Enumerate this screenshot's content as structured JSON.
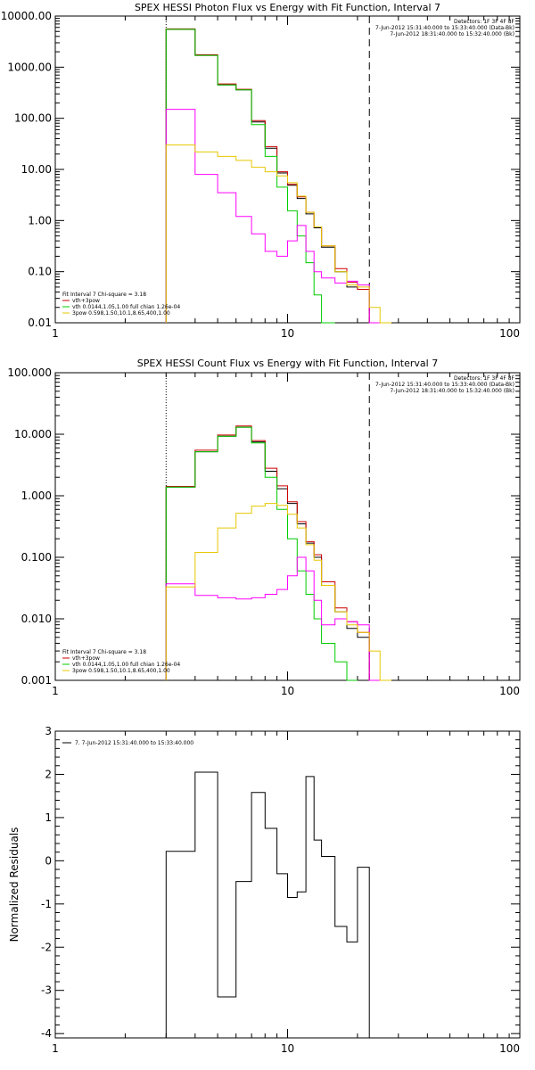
{
  "chart_data": [
    {
      "type": "line",
      "title": "SPEX HESSI Photon Flux vs Energy with Fit Function, Interval 7",
      "x_scale": "log",
      "y_scale": "log",
      "xlim": [
        1,
        100
      ],
      "ylim": [
        0.01,
        10000
      ],
      "x_ticks": [
        "1",
        "10",
        "100"
      ],
      "y_ticks": [
        "0.01",
        "0.10",
        "1.00",
        "10.00",
        "100.00",
        "1000.00",
        "10000.00"
      ],
      "grid": false,
      "vlines": [
        {
          "x": 3,
          "style": "dotted"
        },
        {
          "x": 22.5,
          "style": "dashed"
        }
      ],
      "header": [
        "Detectors: 1F 3F 4F 8F",
        "7-Jun-2012 15:31:40.000 to 15:33:40.000 (Data-Bk)",
        "7-Jun-2012 18:31:40.000 to 15:32:40.000 (Bk)"
      ],
      "header_colors": [
        "#000000",
        "#000000",
        "#ff00ff"
      ],
      "legend_title": "Fit Interval 7   Chi-square = 3.18",
      "legend": [
        {
          "label": "vth+3pow",
          "color": "#cc0000"
        },
        {
          "label": "vth 0.0144,1.05,1.00  full chian 1.26e-04",
          "color": "#00cc00"
        },
        {
          "label": "3pow 0.598,1.50,10.1,8.65,400,1.00",
          "color": "#e6c800"
        }
      ],
      "x_edges": [
        3,
        4,
        5,
        6,
        7,
        8,
        9,
        10,
        11,
        12,
        13,
        14,
        16,
        18,
        20,
        22.5,
        25,
        28
      ],
      "series": [
        {
          "color": "#000000",
          "values": [
            5500,
            1700,
            450,
            360,
            85,
            26,
            8.5,
            4.9,
            2.7,
            1.35,
            0.72,
            0.3,
            0.1,
            0.05,
            0.045,
            null,
            null
          ]
        },
        {
          "color": "#cc0000",
          "values": [
            5600,
            1750,
            470,
            370,
            90,
            28,
            9.0,
            5.1,
            2.9,
            1.45,
            0.75,
            0.32,
            0.115,
            0.062,
            0.045,
            null,
            null
          ]
        },
        {
          "color": "#00cc00",
          "values": [
            5500,
            1700,
            450,
            360,
            75,
            18,
            4.5,
            1.55,
            0.5,
            0.15,
            0.035,
            0.01,
            null,
            null,
            null,
            null,
            null
          ]
        },
        {
          "color": "#ff00ff",
          "values": [
            150,
            8,
            3.5,
            1.2,
            0.55,
            0.25,
            0.2,
            0.4,
            0.8,
            0.25,
            0.1,
            0.075,
            0.06,
            0.065,
            0.055,
            0.01,
            null
          ]
        },
        {
          "color": "#e6c800",
          "values": [
            30,
            22,
            18,
            15,
            11,
            9,
            7.5,
            5.5,
            3.0,
            1.45,
            0.75,
            0.32,
            0.1,
            0.055,
            0.05,
            0.02,
            0.01
          ]
        }
      ]
    },
    {
      "type": "line",
      "title": "SPEX HESSI Count Flux vs Energy with Fit Function, Interval 7",
      "x_scale": "log",
      "y_scale": "log",
      "xlim": [
        1,
        100
      ],
      "ylim": [
        0.001,
        100
      ],
      "x_ticks": [
        "1",
        "10",
        "100"
      ],
      "y_ticks": [
        "0.001",
        "0.010",
        "0.100",
        "1.000",
        "10.000",
        "100.000"
      ],
      "grid": false,
      "vlines": [
        {
          "x": 3,
          "style": "dotted"
        },
        {
          "x": 22.5,
          "style": "dashed"
        }
      ],
      "header": [
        "Detectors: 1F 3F 4F 8F",
        "7-Jun-2012 15:31:40.000 to 15:33:40.000 (Data-Bk)",
        "7-Jun-2012 18:31:40.000 to 15:32:40.000 (Bk)"
      ],
      "header_colors": [
        "#000000",
        "#000000",
        "#ff00ff"
      ],
      "legend_title": "Fit Interval 7   Chi-square = 3.18",
      "legend": [
        {
          "label": "vth+3pow",
          "color": "#cc0000"
        },
        {
          "label": "vth 0.0144,1.05,1.00  full chian 1.26e-04",
          "color": "#00cc00"
        },
        {
          "label": "3pow 0.598,1.50,10.1,8.65,400,1.00",
          "color": "#e6c800"
        }
      ],
      "x_edges": [
        3,
        4,
        5,
        6,
        7,
        8,
        9,
        10,
        11,
        12,
        13,
        14,
        16,
        18,
        20,
        22.5,
        25,
        28
      ],
      "series": [
        {
          "color": "#000000",
          "values": [
            1.38,
            5.2,
            9.3,
            13.0,
            7.5,
            2.5,
            1.3,
            0.75,
            0.35,
            0.17,
            0.1,
            0.035,
            0.013,
            0.007,
            0.005,
            null,
            null
          ]
        },
        {
          "color": "#cc0000",
          "values": [
            1.42,
            5.5,
            9.7,
            13.6,
            7.9,
            2.8,
            1.45,
            0.8,
            0.38,
            0.18,
            0.11,
            0.04,
            0.015,
            0.009,
            0.006,
            null,
            null
          ]
        },
        {
          "color": "#00cc00",
          "values": [
            1.38,
            5.2,
            9.3,
            13.0,
            7.2,
            2.0,
            0.6,
            0.2,
            0.06,
            0.025,
            0.01,
            0.004,
            0.002,
            0.001,
            null,
            null,
            null
          ]
        },
        {
          "color": "#ff00ff",
          "values": [
            0.037,
            0.024,
            0.022,
            0.021,
            0.022,
            0.025,
            0.03,
            0.05,
            0.1,
            0.06,
            0.02,
            0.008,
            0.01,
            0.009,
            0.008,
            0.001,
            null
          ]
        },
        {
          "color": "#e6c800",
          "values": [
            0.033,
            0.12,
            0.3,
            0.52,
            0.68,
            0.75,
            0.7,
            0.5,
            0.3,
            0.16,
            0.09,
            0.035,
            0.013,
            0.008,
            0.006,
            0.003,
            0.001
          ]
        }
      ]
    },
    {
      "type": "line",
      "title": "",
      "x_scale": "log",
      "y_scale": "linear",
      "xlim": [
        1,
        100
      ],
      "ylim": [
        -4.1,
        3
      ],
      "x_ticks": [
        "1",
        "10",
        "100"
      ],
      "y_ticks": [
        "-4",
        "-3",
        "-2",
        "-1",
        "0",
        "1",
        "2",
        "3"
      ],
      "ylabel": "Normalized Residuals",
      "grid": false,
      "legend": [
        {
          "label": "7.  7-Jun-2012 15:31:40.000 to 15:33:40.000",
          "color": "#000000"
        }
      ],
      "x_edges": [
        3,
        4,
        5,
        6,
        7,
        8,
        9,
        10,
        11,
        12,
        13,
        14,
        16,
        18,
        20,
        22.5
      ],
      "series": [
        {
          "color": "#000000",
          "values": [
            0.22,
            2.05,
            -3.15,
            -0.48,
            1.58,
            0.75,
            -0.3,
            -0.85,
            -0.72,
            1.95,
            0.48,
            0.1,
            -1.52,
            -1.88,
            -0.15
          ]
        }
      ]
    }
  ]
}
